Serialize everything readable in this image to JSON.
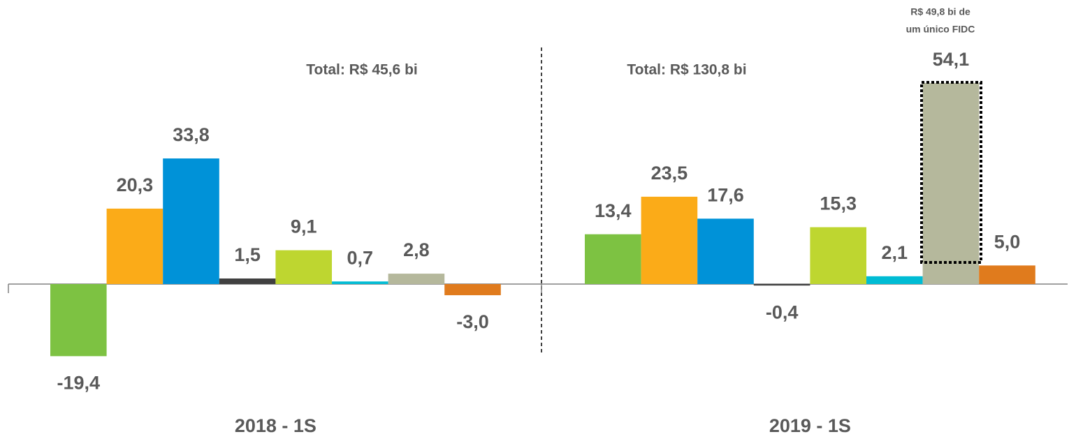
{
  "chart_data": {
    "type": "bar",
    "categories": [
      "2018 - 1S",
      "2019 - 1S"
    ],
    "series": [
      {
        "color": "#7dc242",
        "values": [
          -19.4,
          13.4
        ],
        "value_labels": [
          "-19,4",
          "13,4"
        ]
      },
      {
        "color": "#fbab18",
        "values": [
          20.3,
          23.5
        ],
        "value_labels": [
          "20,3",
          "23,5"
        ]
      },
      {
        "color": "#0092d8",
        "values": [
          33.8,
          17.6
        ],
        "value_labels": [
          "33,8",
          "17,6"
        ]
      },
      {
        "color": "#404040",
        "values": [
          1.5,
          -0.4
        ],
        "value_labels": [
          "1,5",
          "-0,4"
        ]
      },
      {
        "color": "#bed630",
        "values": [
          9.1,
          15.3
        ],
        "value_labels": [
          "9,1",
          "15,3"
        ]
      },
      {
        "color": "#00bcd4",
        "values": [
          0.7,
          2.1
        ],
        "value_labels": [
          "0,7",
          "2,1"
        ]
      },
      {
        "color": "#b5b89c",
        "values": [
          2.8,
          54.1
        ],
        "value_labels": [
          "2,8",
          "54,1"
        ]
      },
      {
        "color": "#e07b1d",
        "values": [
          -3.0,
          5.0
        ],
        "value_labels": [
          "-3,0",
          "5,0"
        ]
      }
    ],
    "annotations": [
      "Total: R$ 45,6 bi",
      "Total: R$ 130,8 bi",
      [
        "R$ 49,8 bi de",
        "um único FIDC"
      ]
    ]
  }
}
